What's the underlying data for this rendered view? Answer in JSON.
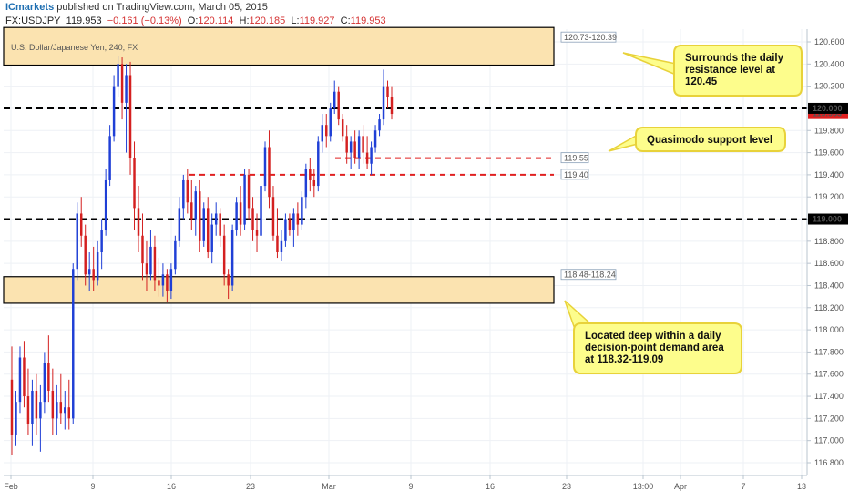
{
  "header": {
    "brand": "ICmarkets",
    "published": " published on TradingView.com, March 05, 2015",
    "symbol": "FX:USDJPY",
    "last": "119.953",
    "change": "−0.161 (−0.13%)",
    "open_label": "O:",
    "open": "120.114",
    "high_label": "H:",
    "high": "120.185",
    "low_label": "L:",
    "low": "119.927",
    "close_label": "C:",
    "close": "119.953"
  },
  "colors": {
    "up": "#1f3fd6",
    "down": "#d42020",
    "zone_fill": "#fbe3b0",
    "callout_fill": "#fdfd8c",
    "callout_border": "#e8d23a",
    "level_black": "#000000",
    "level_red": "#e02020",
    "price_badge": "#e02020"
  },
  "chart_data": {
    "type": "candlestick",
    "title": "U.S. Dollar/Japanese Yen, 240, FX",
    "ylim": [
      116.75,
      120.65
    ],
    "x_tick_labels": [
      "Feb",
      "9",
      "16",
      "23",
      "Mar",
      "9",
      "16",
      "23",
      "13:00",
      "Apr",
      "7",
      "13"
    ],
    "y_tick_labels": [
      "120.600",
      "120.400",
      "120.200",
      "120.000",
      "119.800",
      "119.600",
      "119.400",
      "119.200",
      "119.000",
      "118.800",
      "118.600",
      "118.400",
      "118.200",
      "118.000",
      "117.800",
      "117.600",
      "117.400",
      "117.200",
      "117.000",
      "116.800"
    ],
    "last_price": 119.953,
    "levels": [
      {
        "value": 120.0,
        "style": "black-dashed",
        "axis_label": "120.000"
      },
      {
        "value": 119.0,
        "style": "black-dashed",
        "axis_label": "119.000"
      },
      {
        "value": 119.55,
        "style": "red-dashed",
        "tag": "119.55"
      },
      {
        "value": 119.4,
        "style": "red-dashed",
        "tag": "119.40"
      }
    ],
    "zones": [
      {
        "top": 120.73,
        "bottom": 120.39,
        "tag": "120.73-120.39"
      },
      {
        "top": 118.48,
        "bottom": 118.24,
        "tag": "118.48-118.24"
      }
    ],
    "annotations": [
      "Surrounds the daily resistance level at 120.45",
      "Quasimodo support level",
      "Located deep within a daily decision-point demand area at 118.32-119.09"
    ],
    "candles": [
      {
        "o": 117.55,
        "h": 117.85,
        "l": 116.87,
        "c": 117.05
      },
      {
        "o": 117.05,
        "h": 117.45,
        "l": 116.95,
        "c": 117.35
      },
      {
        "o": 117.35,
        "h": 117.85,
        "l": 117.25,
        "c": 117.75
      },
      {
        "o": 117.75,
        "h": 117.9,
        "l": 117.3,
        "c": 117.4
      },
      {
        "o": 117.4,
        "h": 117.65,
        "l": 117.05,
        "c": 117.15
      },
      {
        "o": 117.15,
        "h": 117.55,
        "l": 116.95,
        "c": 117.45
      },
      {
        "o": 117.45,
        "h": 117.6,
        "l": 117.05,
        "c": 117.2
      },
      {
        "o": 117.2,
        "h": 117.5,
        "l": 116.9,
        "c": 117.35
      },
      {
        "o": 117.35,
        "h": 117.8,
        "l": 117.25,
        "c": 117.7
      },
      {
        "o": 117.7,
        "h": 117.95,
        "l": 117.35,
        "c": 117.45
      },
      {
        "o": 117.45,
        "h": 117.65,
        "l": 117.05,
        "c": 117.2
      },
      {
        "o": 117.2,
        "h": 117.5,
        "l": 117.05,
        "c": 117.35
      },
      {
        "o": 117.35,
        "h": 117.6,
        "l": 117.15,
        "c": 117.25
      },
      {
        "o": 117.25,
        "h": 117.45,
        "l": 117.1,
        "c": 117.3
      },
      {
        "o": 117.3,
        "h": 117.55,
        "l": 117.1,
        "c": 117.2
      },
      {
        "o": 117.2,
        "h": 118.6,
        "l": 117.15,
        "c": 118.55
      },
      {
        "o": 118.55,
        "h": 119.15,
        "l": 118.45,
        "c": 119.05
      },
      {
        "o": 119.05,
        "h": 119.2,
        "l": 118.75,
        "c": 118.85
      },
      {
        "o": 118.85,
        "h": 118.95,
        "l": 118.4,
        "c": 118.5
      },
      {
        "o": 118.5,
        "h": 118.7,
        "l": 118.35,
        "c": 118.55
      },
      {
        "o": 118.55,
        "h": 118.75,
        "l": 118.35,
        "c": 118.45
      },
      {
        "o": 118.45,
        "h": 118.8,
        "l": 118.4,
        "c": 118.7
      },
      {
        "o": 118.7,
        "h": 119.0,
        "l": 118.55,
        "c": 118.9
      },
      {
        "o": 118.9,
        "h": 119.45,
        "l": 118.85,
        "c": 119.35
      },
      {
        "o": 119.35,
        "h": 119.85,
        "l": 119.3,
        "c": 119.75
      },
      {
        "o": 119.75,
        "h": 120.3,
        "l": 119.7,
        "c": 120.2
      },
      {
        "o": 120.2,
        "h": 120.47,
        "l": 120.1,
        "c": 120.4
      },
      {
        "o": 120.4,
        "h": 120.46,
        "l": 119.9,
        "c": 120.05
      },
      {
        "o": 120.05,
        "h": 120.4,
        "l": 119.6,
        "c": 120.3
      },
      {
        "o": 120.3,
        "h": 120.42,
        "l": 119.4,
        "c": 119.55
      },
      {
        "o": 119.55,
        "h": 119.7,
        "l": 118.9,
        "c": 119.1
      },
      {
        "o": 119.1,
        "h": 119.3,
        "l": 118.7,
        "c": 118.85
      },
      {
        "o": 118.85,
        "h": 119.05,
        "l": 118.45,
        "c": 118.6
      },
      {
        "o": 118.6,
        "h": 118.8,
        "l": 118.35,
        "c": 118.5
      },
      {
        "o": 118.5,
        "h": 118.9,
        "l": 118.45,
        "c": 118.75
      },
      {
        "o": 118.75,
        "h": 118.85,
        "l": 118.35,
        "c": 118.45
      },
      {
        "o": 118.45,
        "h": 118.65,
        "l": 118.3,
        "c": 118.4
      },
      {
        "o": 118.4,
        "h": 118.6,
        "l": 118.3,
        "c": 118.5
      },
      {
        "o": 118.5,
        "h": 118.55,
        "l": 118.25,
        "c": 118.35
      },
      {
        "o": 118.35,
        "h": 118.6,
        "l": 118.28,
        "c": 118.55
      },
      {
        "o": 118.55,
        "h": 118.85,
        "l": 118.5,
        "c": 118.8
      },
      {
        "o": 118.8,
        "h": 119.2,
        "l": 118.75,
        "c": 119.1
      },
      {
        "o": 119.1,
        "h": 119.4,
        "l": 119.0,
        "c": 119.35
      },
      {
        "o": 119.35,
        "h": 119.45,
        "l": 119.05,
        "c": 119.15
      },
      {
        "o": 119.15,
        "h": 119.35,
        "l": 118.9,
        "c": 119.0
      },
      {
        "o": 119.0,
        "h": 119.3,
        "l": 118.85,
        "c": 119.25
      },
      {
        "o": 119.25,
        "h": 119.35,
        "l": 118.7,
        "c": 118.8
      },
      {
        "o": 118.8,
        "h": 119.15,
        "l": 118.75,
        "c": 119.1
      },
      {
        "o": 119.1,
        "h": 119.2,
        "l": 118.65,
        "c": 118.7
      },
      {
        "o": 118.7,
        "h": 119.05,
        "l": 118.6,
        "c": 118.95
      },
      {
        "o": 118.95,
        "h": 119.15,
        "l": 118.85,
        "c": 119.05
      },
      {
        "o": 119.05,
        "h": 119.1,
        "l": 118.75,
        "c": 118.85
      },
      {
        "o": 118.85,
        "h": 118.95,
        "l": 118.4,
        "c": 118.5
      },
      {
        "o": 118.5,
        "h": 118.55,
        "l": 118.28,
        "c": 118.4
      },
      {
        "o": 118.4,
        "h": 118.95,
        "l": 118.35,
        "c": 118.9
      },
      {
        "o": 118.9,
        "h": 119.2,
        "l": 118.85,
        "c": 119.15
      },
      {
        "o": 119.15,
        "h": 119.3,
        "l": 118.85,
        "c": 118.95
      },
      {
        "o": 118.95,
        "h": 119.45,
        "l": 118.9,
        "c": 119.4
      },
      {
        "o": 119.4,
        "h": 119.45,
        "l": 119.0,
        "c": 119.1
      },
      {
        "o": 119.1,
        "h": 119.2,
        "l": 118.8,
        "c": 118.9
      },
      {
        "o": 118.9,
        "h": 119.05,
        "l": 118.7,
        "c": 118.85
      },
      {
        "o": 118.85,
        "h": 119.35,
        "l": 118.8,
        "c": 119.3
      },
      {
        "o": 119.3,
        "h": 119.7,
        "l": 119.25,
        "c": 119.65
      },
      {
        "o": 119.65,
        "h": 119.8,
        "l": 119.1,
        "c": 119.2
      },
      {
        "o": 119.2,
        "h": 119.3,
        "l": 118.8,
        "c": 118.85
      },
      {
        "o": 118.85,
        "h": 119.1,
        "l": 118.65,
        "c": 118.7
      },
      {
        "o": 118.7,
        "h": 118.9,
        "l": 118.62,
        "c": 118.8
      },
      {
        "o": 118.8,
        "h": 119.05,
        "l": 118.75,
        "c": 119.0
      },
      {
        "o": 119.0,
        "h": 119.05,
        "l": 118.85,
        "c": 118.9
      },
      {
        "o": 118.9,
        "h": 119.1,
        "l": 118.75,
        "c": 119.05
      },
      {
        "o": 119.05,
        "h": 119.15,
        "l": 118.85,
        "c": 118.95
      },
      {
        "o": 118.95,
        "h": 119.25,
        "l": 118.9,
        "c": 119.2
      },
      {
        "o": 119.2,
        "h": 119.5,
        "l": 119.1,
        "c": 119.45
      },
      {
        "o": 119.45,
        "h": 119.55,
        "l": 119.25,
        "c": 119.35
      },
      {
        "o": 119.35,
        "h": 119.45,
        "l": 119.2,
        "c": 119.3
      },
      {
        "o": 119.3,
        "h": 119.75,
        "l": 119.25,
        "c": 119.7
      },
      {
        "o": 119.7,
        "h": 119.95,
        "l": 119.6,
        "c": 119.85
      },
      {
        "o": 119.85,
        "h": 119.95,
        "l": 119.65,
        "c": 119.75
      },
      {
        "o": 119.75,
        "h": 120.05,
        "l": 119.7,
        "c": 120.0
      },
      {
        "o": 120.0,
        "h": 120.25,
        "l": 119.95,
        "c": 120.15
      },
      {
        "o": 120.15,
        "h": 120.2,
        "l": 119.85,
        "c": 119.9
      },
      {
        "o": 119.9,
        "h": 119.95,
        "l": 119.7,
        "c": 119.75
      },
      {
        "o": 119.75,
        "h": 119.85,
        "l": 119.5,
        "c": 119.6
      },
      {
        "o": 119.6,
        "h": 119.75,
        "l": 119.45,
        "c": 119.7
      },
      {
        "o": 119.7,
        "h": 119.8,
        "l": 119.5,
        "c": 119.55
      },
      {
        "o": 119.55,
        "h": 119.8,
        "l": 119.45,
        "c": 119.75
      },
      {
        "o": 119.75,
        "h": 119.85,
        "l": 119.5,
        "c": 119.6
      },
      {
        "o": 119.6,
        "h": 119.75,
        "l": 119.45,
        "c": 119.5
      },
      {
        "o": 119.5,
        "h": 119.7,
        "l": 119.4,
        "c": 119.65
      },
      {
        "o": 119.65,
        "h": 119.85,
        "l": 119.6,
        "c": 119.8
      },
      {
        "o": 119.8,
        "h": 119.95,
        "l": 119.75,
        "c": 119.9
      },
      {
        "o": 119.9,
        "h": 120.35,
        "l": 119.85,
        "c": 120.2
      },
      {
        "o": 120.2,
        "h": 120.25,
        "l": 120.0,
        "c": 120.1
      },
      {
        "o": 120.1,
        "h": 120.2,
        "l": 119.9,
        "c": 119.95
      }
    ]
  }
}
